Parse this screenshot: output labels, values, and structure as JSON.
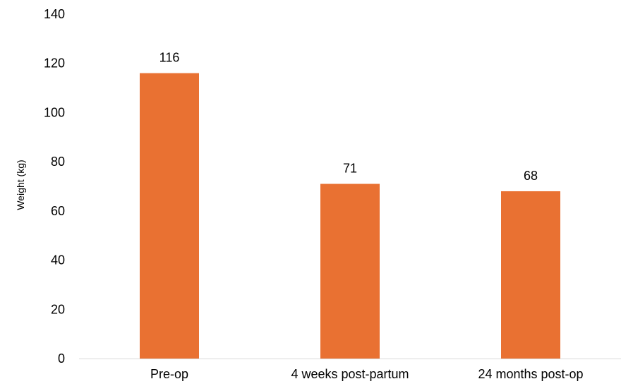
{
  "chart_data": {
    "type": "bar",
    "categories": [
      "Pre-op",
      "4 weeks post-partum",
      "24 months post-op"
    ],
    "values": [
      116,
      71,
      68
    ],
    "data_labels": [
      "116",
      "71",
      "68"
    ],
    "title": "",
    "xlabel": "",
    "ylabel": "Weight (kg)",
    "ylim": [
      0,
      140
    ],
    "yticks": [
      0,
      20,
      40,
      60,
      80,
      100,
      120,
      140
    ],
    "ytick_labels": [
      "0",
      "20",
      "40",
      "60",
      "80",
      "100",
      "120",
      "140"
    ],
    "grid": false,
    "legend": "none",
    "bar_color": "#e97132",
    "axis_color": "#d9d9d9"
  }
}
